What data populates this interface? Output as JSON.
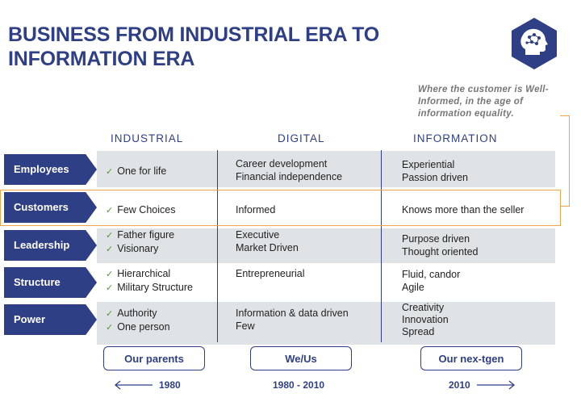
{
  "title": "BUSINESS FROM INDUSTRIAL ERA TO INFORMATION ERA",
  "logo": {
    "icon": "head-network-icon",
    "color": "#2f3f86"
  },
  "note": "Where the customer is Well-Informed, in the age of information equality.",
  "columns": [
    "INDUSTRIAL",
    "DIGITAL",
    "INFORMATION"
  ],
  "rows": [
    {
      "label": "Employees",
      "industrial": [
        "One for life"
      ],
      "digital": [
        "Career development",
        "Financial independence"
      ],
      "information": [
        "Experiential",
        "Passion driven"
      ]
    },
    {
      "label": "Customers",
      "industrial": [
        "Few Choices"
      ],
      "digital": [
        "Informed"
      ],
      "information": [
        "Knows more than the seller"
      ]
    },
    {
      "label": "Leadership",
      "industrial": [
        "Father figure",
        "Visionary"
      ],
      "digital": [
        "Executive",
        "Market Driven"
      ],
      "information": [
        "Purpose driven",
        "Thought oriented"
      ]
    },
    {
      "label": "Structure",
      "industrial": [
        "Hierarchical",
        "Military Structure"
      ],
      "digital": [
        "Entrepreneurial"
      ],
      "information": [
        "Fluid, candor",
        "Agile"
      ]
    },
    {
      "label": "Power",
      "industrial": [
        "Authority",
        "One person"
      ],
      "digital": [
        "Information & data driven",
        "Few"
      ],
      "information": [
        "Creativity",
        "Innovation",
        "Spread"
      ]
    }
  ],
  "check_mark": "✓",
  "generations": [
    "Our parents",
    "We/Us",
    "Our nex-tgen"
  ],
  "years": [
    "1980",
    "1980 - 2010",
    "2010"
  ],
  "colors": {
    "navy": "#2f3f86",
    "band": "#dfe3e5",
    "highlight": "#f2a44b",
    "check": "#4a9a2e"
  }
}
